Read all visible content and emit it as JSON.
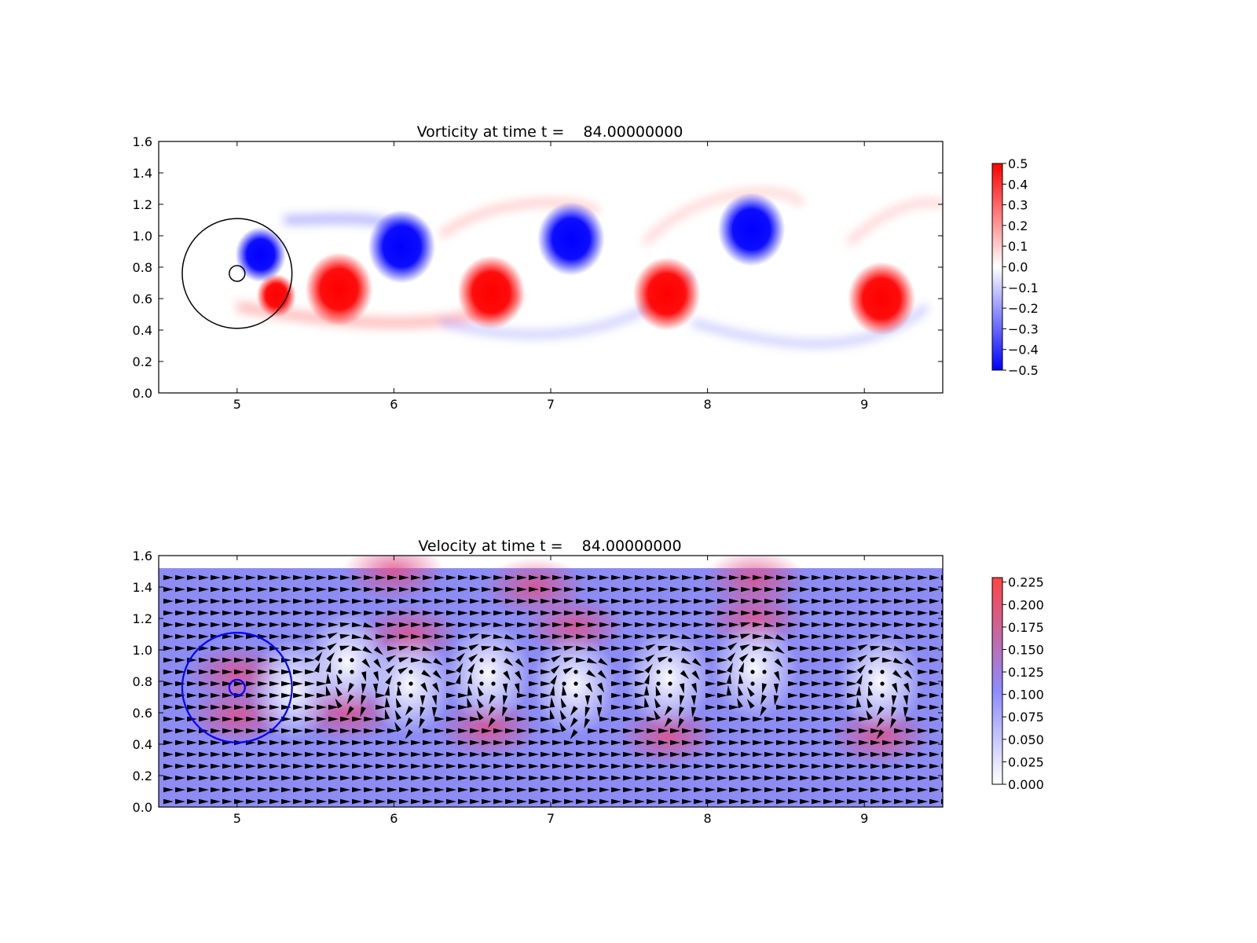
{
  "chart_data": [
    {
      "type": "heatmap",
      "title": "Vorticity at time t =    84.00000000",
      "xlim": [
        4.5,
        9.5
      ],
      "ylim": [
        0.0,
        1.6
      ],
      "xticks": [
        "5",
        "6",
        "7",
        "8",
        "9"
      ],
      "yticks": [
        "0.0",
        "0.2",
        "0.4",
        "0.6",
        "0.8",
        "1.0",
        "1.2",
        "1.4",
        "1.6"
      ],
      "colormap": [
        "#0000ff",
        "#ffffff",
        "#ff0000"
      ],
      "colorbar": {
        "range": [
          -0.5,
          0.5
        ],
        "ticks": [
          "0.5",
          "0.4",
          "0.3",
          "0.2",
          "0.1",
          "0.0",
          "−0.1",
          "−0.2",
          "−0.3",
          "−0.4",
          "−0.5"
        ]
      },
      "vortices": [
        {
          "x": 5.15,
          "y": 0.88,
          "sign": -1,
          "strength": 0.45
        },
        {
          "x": 5.25,
          "y": 0.62,
          "sign": 1,
          "strength": 0.35
        },
        {
          "x": 5.65,
          "y": 0.66,
          "sign": 1,
          "strength": 0.6
        },
        {
          "x": 6.05,
          "y": 0.93,
          "sign": -1,
          "strength": 0.6
        },
        {
          "x": 6.62,
          "y": 0.64,
          "sign": 1,
          "strength": 0.6
        },
        {
          "x": 7.13,
          "y": 0.98,
          "sign": -1,
          "strength": 0.6
        },
        {
          "x": 7.74,
          "y": 0.63,
          "sign": 1,
          "strength": 0.6
        },
        {
          "x": 8.28,
          "y": 1.04,
          "sign": -1,
          "strength": 0.6
        },
        {
          "x": 9.11,
          "y": 0.6,
          "sign": 1,
          "strength": 0.6
        }
      ],
      "circles": [
        {
          "x": 5.0,
          "y": 0.76,
          "r": 0.35,
          "color": "#000000"
        },
        {
          "x": 5.0,
          "y": 0.76,
          "r": 0.05,
          "color": "#000000"
        }
      ]
    },
    {
      "type": "heatmap",
      "title": "Velocity at time t =    84.00000000",
      "xlim": [
        4.5,
        9.5
      ],
      "ylim": [
        0.0,
        1.6
      ],
      "xticks": [
        "5",
        "6",
        "7",
        "8",
        "9"
      ],
      "yticks": [
        "0.0",
        "0.2",
        "0.4",
        "0.6",
        "0.8",
        "1.0",
        "1.2",
        "1.4",
        "1.6"
      ],
      "colormap": [
        "#ffffff",
        "#8080ff",
        "#ff4040"
      ],
      "colorbar": {
        "range": [
          0.0,
          0.23
        ],
        "ticks": [
          "0.225",
          "0.200",
          "0.175",
          "0.150",
          "0.125",
          "0.100",
          "0.075",
          "0.050",
          "0.025",
          "0.000"
        ]
      },
      "quiver": true,
      "field_top": 1.52,
      "circles": [
        {
          "x": 5.0,
          "y": 0.76,
          "r": 0.35,
          "color": "#0000ff"
        },
        {
          "x": 5.0,
          "y": 0.76,
          "r": 0.05,
          "color": "#0000ff"
        }
      ]
    }
  ]
}
